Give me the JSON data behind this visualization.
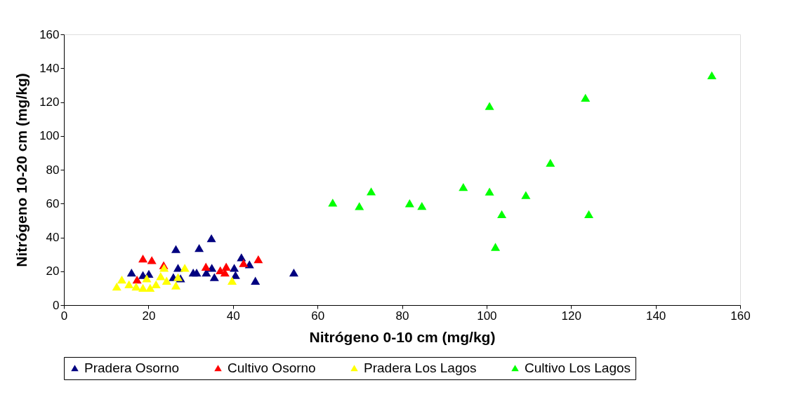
{
  "chart_data": {
    "type": "scatter",
    "xlabel": "Nitrógeno 0-10 cm (mg/kg)",
    "ylabel": "Nitrógeno 10-20 cm (mg/kg)",
    "xlim": [
      0,
      160
    ],
    "ylim": [
      0,
      160
    ],
    "xticks": [
      0,
      20,
      40,
      60,
      80,
      100,
      120,
      140,
      160
    ],
    "yticks": [
      0,
      20,
      40,
      60,
      80,
      100,
      120,
      140,
      160
    ],
    "grid": false,
    "legend": "bottom",
    "marker": "triangle",
    "series": [
      {
        "name": "Pradera Osorno",
        "color": "#000080",
        "x": [
          16.0,
          20.1,
          18.7,
          26.5,
          32,
          34.9,
          27,
          25.9,
          30.6,
          31.4,
          33.7,
          35,
          35.6,
          40.3,
          40.6,
          42,
          43.9,
          45.3,
          54.4,
          27.6
        ],
        "values": [
          19.2,
          18.5,
          17.8,
          33.1,
          33.7,
          39.5,
          22,
          16.5,
          19.2,
          19.2,
          19.2,
          22,
          16.5,
          22,
          17.8,
          28.2,
          24.1,
          14.4,
          19.2,
          15.8
        ]
      },
      {
        "name": "Cultivo Osorno",
        "color": "#ff0000",
        "x": [
          18.7,
          20.8,
          23.6,
          17.3,
          33.6,
          37,
          38.4,
          38.1,
          42.5,
          46
        ],
        "values": [
          27.5,
          26.6,
          23.6,
          15.1,
          22.7,
          20.6,
          22.7,
          19.2,
          24.8,
          27.1
        ]
      },
      {
        "name": "Pradera Los Lagos",
        "color": "#ffff00",
        "x": [
          12.5,
          13.7,
          15.4,
          17.1,
          18.7,
          19.6,
          20.4,
          21.8,
          22.9,
          23.7,
          24.3,
          26.5,
          27,
          28.6,
          39.8
        ],
        "values": [
          10.9,
          15.1,
          12.3,
          10.9,
          10.2,
          15.8,
          10.2,
          12.3,
          17.1,
          22,
          14.4,
          11.6,
          16.5,
          22,
          14.4
        ]
      },
      {
        "name": "Cultivo Los Lagos",
        "color": "#00ff00",
        "x": [
          153.3,
          123.4,
          100.7,
          115.1,
          94.5,
          100.7,
          109.3,
          81.8,
          84.7,
          103.6,
          124.2,
          63.6,
          69.9,
          72.7,
          102.1
        ],
        "values": [
          135.8,
          122.5,
          117.7,
          84.1,
          69.8,
          67.1,
          65,
          60.2,
          58.6,
          53.7,
          53.7,
          60.6,
          58.5,
          67.2,
          34.4
        ]
      }
    ]
  }
}
